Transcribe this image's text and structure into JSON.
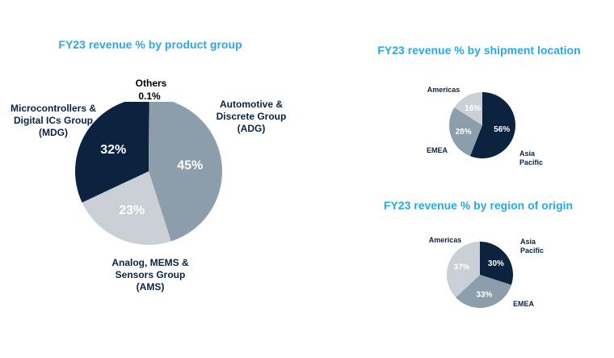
{
  "slide": {
    "background": "#FFFFFF"
  },
  "palette": {
    "title_cyan": "#29A9E0",
    "navy": "#0C2340",
    "slate": "#8C9DAC",
    "light_gray": "#CBD0D7",
    "others_black": "#000000",
    "inside_label": "#FFFFFF",
    "outside_label": "#0C2340"
  },
  "chart_data": [
    {
      "type": "pie",
      "title": "FY23 revenue % by product group",
      "start_angle_deg": 0,
      "direction": "clockwise",
      "legend": "none",
      "slices": [
        {
          "name": "Others",
          "value": 0.1,
          "percent_label": "0.1%",
          "color": "#000000",
          "label_inside": false
        },
        {
          "name": "Automotive & Discrete Group (ADG)",
          "value": 45,
          "percent_label": "45%",
          "color": "#8C9DAC",
          "label_inside": true
        },
        {
          "name": "Analog, MEMS & Sensors Group (AMS)",
          "value": 23,
          "percent_label": "23%",
          "color": "#CBD0D7",
          "label_inside": true
        },
        {
          "name": "Microcontrollers & Digital ICs Group (MDG)",
          "value": 32,
          "percent_label": "32%",
          "color": "#0C2340",
          "label_inside": true
        }
      ],
      "external_labels": {
        "others_name": "Others",
        "others_value": "0.1%",
        "adg": "Automotive &\nDiscrete Group\n(ADG)",
        "mdg": "Microcontrollers &\nDigital ICs Group\n(MDG)",
        "ams": "Analog, MEMS &\nSensors Group\n(AMS)"
      }
    },
    {
      "type": "pie",
      "title": "FY23 revenue % by shipment location",
      "start_angle_deg": 0,
      "direction": "clockwise",
      "legend": "none",
      "slices": [
        {
          "name": "Asia Pacific",
          "value": 56,
          "percent_label": "56%",
          "color": "#0C2340",
          "label_inside": true
        },
        {
          "name": "EMEA",
          "value": 28,
          "percent_label": "28%",
          "color": "#8C9DAC",
          "label_inside": true
        },
        {
          "name": "Americas",
          "value": 16,
          "percent_label": "16%",
          "color": "#CBD0D7",
          "label_inside": true
        }
      ],
      "external_labels": {
        "americas": "Americas",
        "emea": "EMEA",
        "asia": "Asia\nPacific"
      }
    },
    {
      "type": "pie",
      "title": "FY23 revenue % by region of origin",
      "start_angle_deg": 0,
      "direction": "clockwise",
      "legend": "none",
      "slices": [
        {
          "name": "Asia Pacific",
          "value": 30,
          "percent_label": "30%",
          "color": "#0C2340",
          "label_inside": true
        },
        {
          "name": "EMEA",
          "value": 33,
          "percent_label": "33%",
          "color": "#8C9DAC",
          "label_inside": true
        },
        {
          "name": "Americas",
          "value": 37,
          "percent_label": "37%",
          "color": "#CBD0D7",
          "label_inside": true
        }
      ],
      "external_labels": {
        "americas": "Americas",
        "asia": "Asia\nPacific",
        "emea": "EMEA"
      }
    }
  ]
}
